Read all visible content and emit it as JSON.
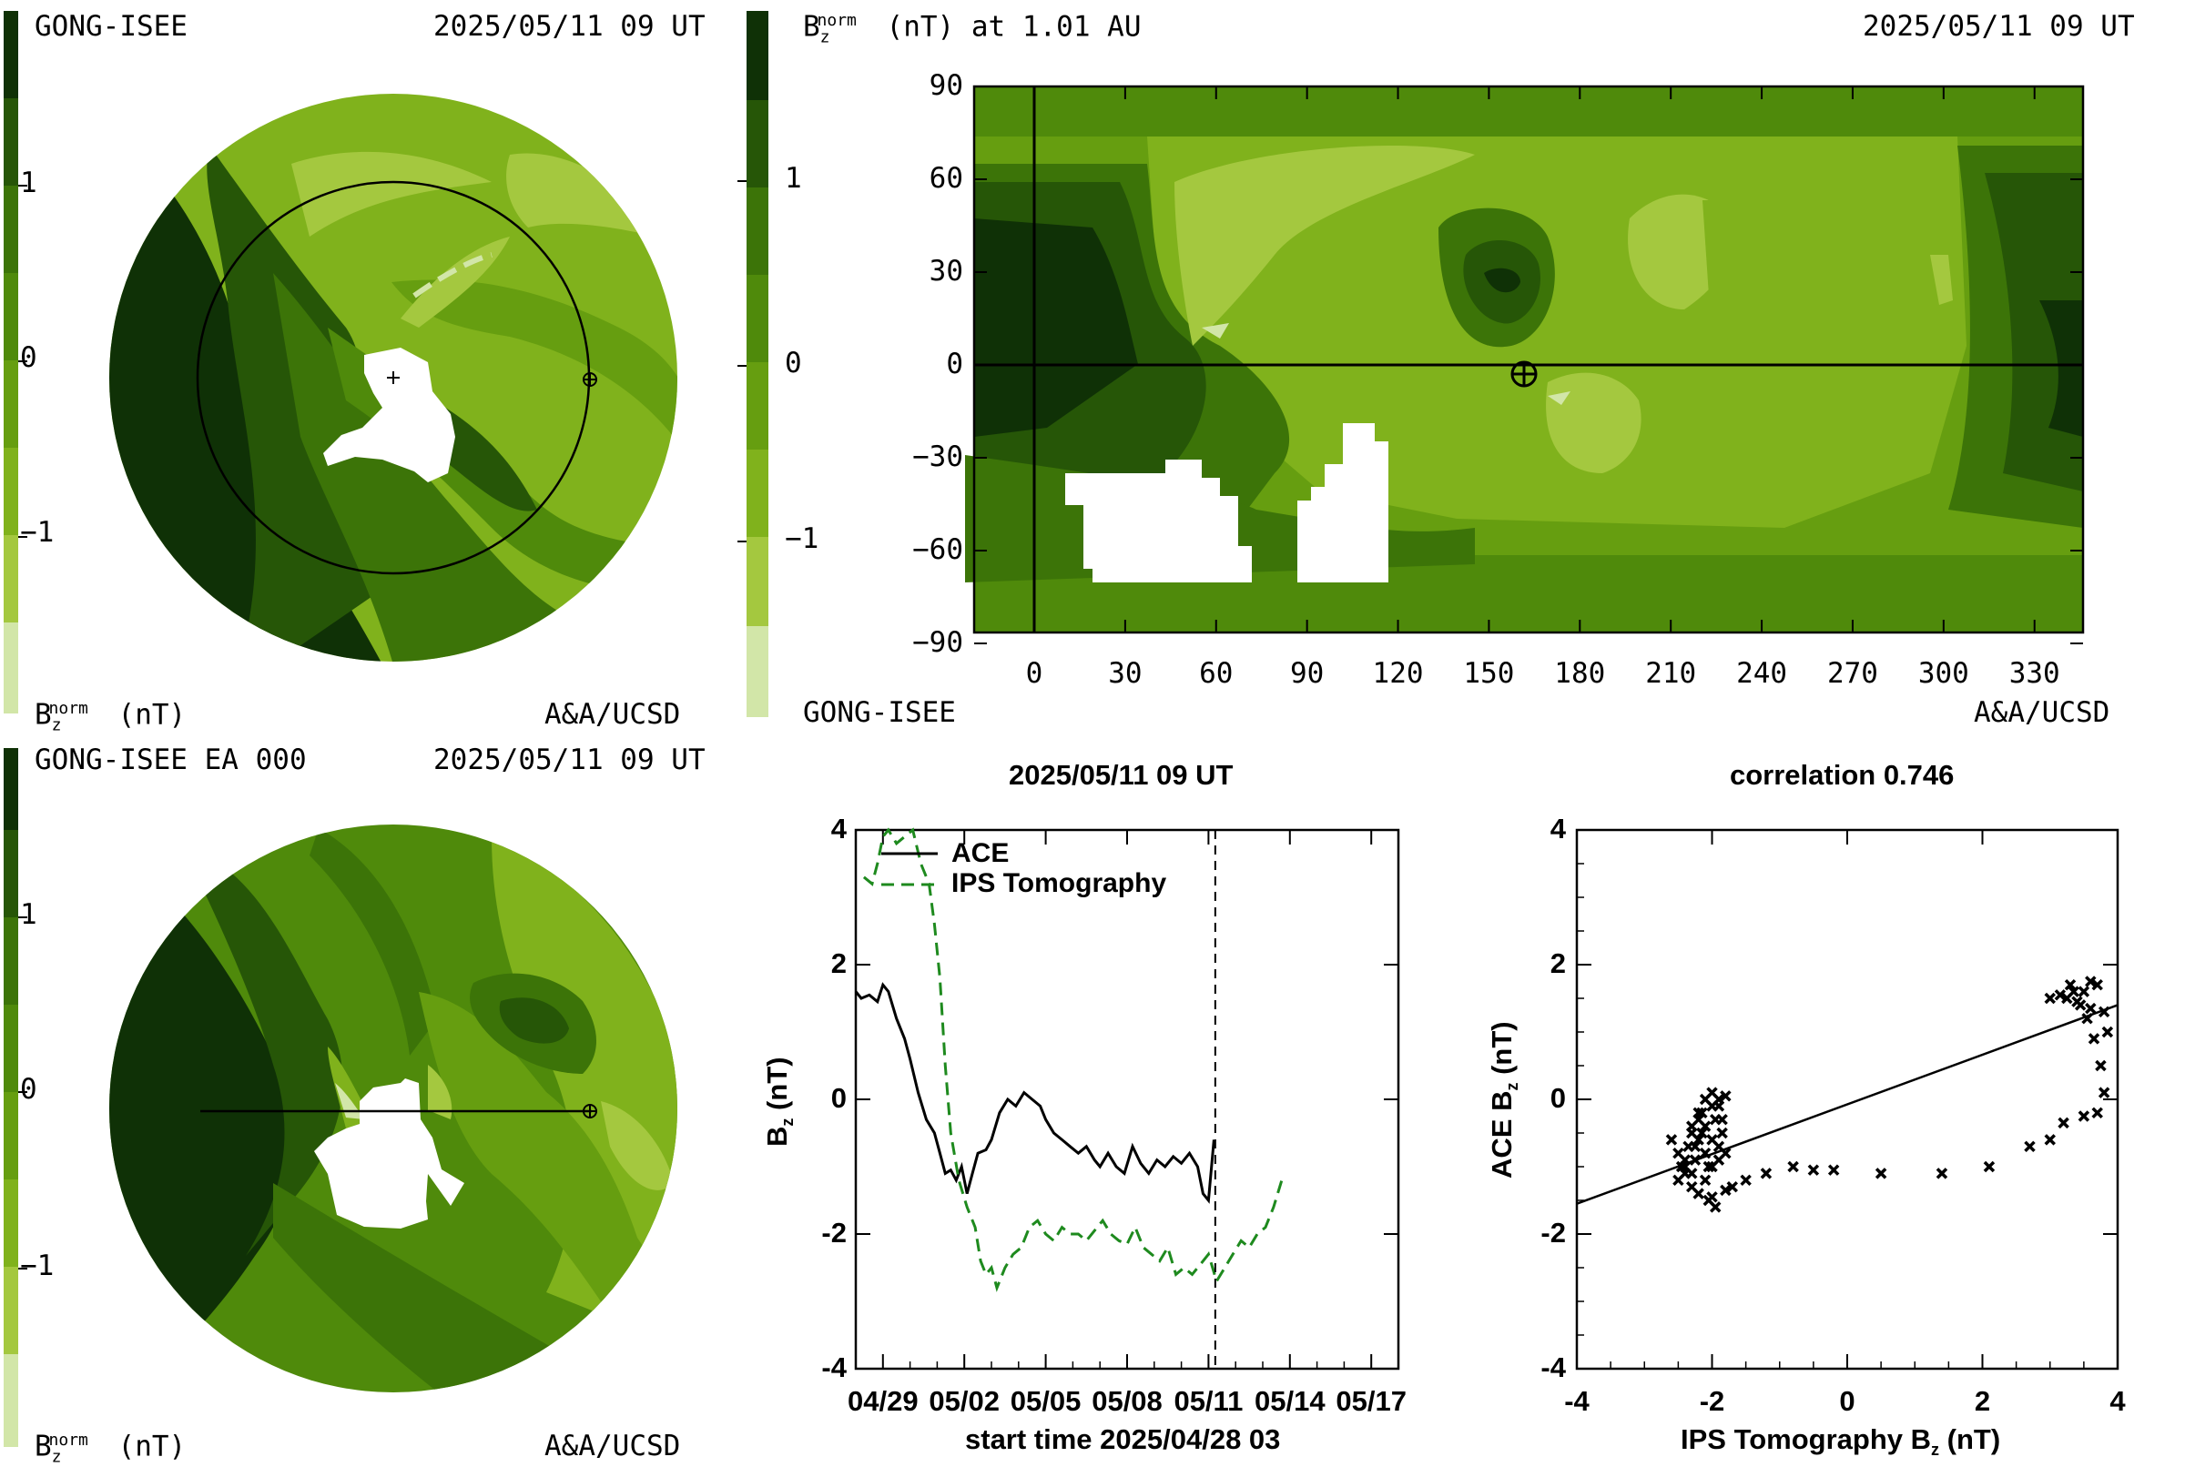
{
  "colors": {
    "c1": "#d2e6a8",
    "c2": "#a4c83f",
    "c3": "#80b21c",
    "c4": "#669e10",
    "c5": "#4f8a0b",
    "c6": "#3c7408",
    "c7": "#265607",
    "c8": "#0f3106",
    "ace": "#000000",
    "ips": "#1e8a1e"
  },
  "panel_tl": {
    "source": "GONG-ISEE",
    "time": "2025/05/11 09 UT",
    "unit_base": "B",
    "unit_sub": "z",
    "unit_sup": "norm",
    "unit_rest": " (nT)",
    "credit": "A&A/UCSD",
    "cbar_ticks": [
      "1",
      "0",
      "−1"
    ]
  },
  "panel_tr": {
    "title_base": "B",
    "title_sub": "z",
    "title_sup": "norm",
    "title_rest": " (nT) at 1.01 AU",
    "time": "2025/05/11 09 UT",
    "source": "GONG-ISEE",
    "credit": "A&A/UCSD",
    "cbar_ticks": [
      "1",
      "0",
      "−1"
    ],
    "y_ticks": [
      "90",
      "60",
      "30",
      "0",
      "−30",
      "−60",
      "−90"
    ],
    "x_ticks": [
      "0",
      "30",
      "60",
      "90",
      "120",
      "150",
      "180",
      "210",
      "240",
      "270",
      "300",
      "330"
    ]
  },
  "panel_bl": {
    "source": "GONG-ISEE EA 000",
    "time": "2025/05/11 09 UT",
    "unit_base": "B",
    "unit_sub": "z",
    "unit_sup": "norm",
    "unit_rest": " (nT)",
    "credit": "A&A/UCSD",
    "cbar_ticks": [
      "1",
      "0",
      "−1"
    ]
  },
  "chart_data": [
    {
      "type": "line",
      "title": "2025/05/11 09 UT",
      "xlabel": "start time 2025/04/28 03",
      "ylabel_base": "B",
      "ylabel_sub": "z",
      "ylabel_rest": " (nT)",
      "x_tick_labels": [
        "04/29",
        "05/02",
        "05/05",
        "05/08",
        "05/11",
        "05/14",
        "05/17"
      ],
      "x_tick_days": [
        1,
        4,
        7,
        10,
        13,
        16,
        19
      ],
      "y_ticks": [
        "4",
        "2",
        "0",
        "-2",
        "-4"
      ],
      "ylim": [
        -4,
        4
      ],
      "xlim": [
        0,
        20
      ],
      "marker_day": 13.25,
      "series": [
        {
          "name": "ACE",
          "style": "solid",
          "x": [
            0,
            0.2,
            0.5,
            0.8,
            1.0,
            1.2,
            1.5,
            1.8,
            2.0,
            2.3,
            2.6,
            2.9,
            3.1,
            3.3,
            3.5,
            3.7,
            3.9,
            4.1,
            4.3,
            4.5,
            4.8,
            5.0,
            5.3,
            5.6,
            5.9,
            6.2,
            6.5,
            6.8,
            7.0,
            7.3,
            7.6,
            7.9,
            8.2,
            8.5,
            8.8,
            9.0,
            9.3,
            9.6,
            9.9,
            10.2,
            10.5,
            10.8,
            11.1,
            11.4,
            11.7,
            12.0,
            12.3,
            12.6,
            12.8,
            13.0,
            13.2
          ],
          "y": [
            1.6,
            1.5,
            1.55,
            1.45,
            1.7,
            1.6,
            1.2,
            0.9,
            0.6,
            0.1,
            -0.3,
            -0.5,
            -0.8,
            -1.1,
            -1.05,
            -1.2,
            -1.0,
            -1.4,
            -1.1,
            -0.8,
            -0.75,
            -0.6,
            -0.2,
            0.0,
            -0.1,
            0.1,
            0.0,
            -0.1,
            -0.3,
            -0.5,
            -0.6,
            -0.7,
            -0.8,
            -0.7,
            -0.9,
            -1.0,
            -0.8,
            -1.0,
            -1.1,
            -0.7,
            -0.95,
            -1.1,
            -0.9,
            -1.0,
            -0.85,
            -0.95,
            -0.8,
            -1.0,
            -1.4,
            -1.5,
            -0.6
          ]
        },
        {
          "name": "IPS Tomography",
          "style": "dashed",
          "x": [
            0.3,
            0.6,
            0.8,
            1.0,
            1.2,
            1.5,
            1.8,
            2.1,
            2.4,
            2.7,
            2.9,
            3.1,
            3.3,
            3.5,
            3.8,
            4.1,
            4.4,
            4.6,
            4.8,
            5.0,
            5.2,
            5.5,
            5.8,
            6.1,
            6.4,
            6.7,
            7.0,
            7.3,
            7.6,
            7.9,
            8.2,
            8.5,
            8.8,
            9.1,
            9.4,
            9.7,
            10.0,
            10.3,
            10.6,
            10.9,
            11.2,
            11.5,
            11.8,
            12.1,
            12.4,
            12.7,
            13.0,
            13.3,
            13.6,
            13.9,
            14.2,
            14.5,
            14.8,
            15.1,
            15.4,
            15.7
          ],
          "y": [
            3.3,
            3.2,
            3.5,
            3.9,
            4.0,
            3.8,
            3.9,
            4.0,
            3.5,
            3.2,
            2.6,
            1.8,
            0.5,
            -0.5,
            -1.2,
            -1.6,
            -1.9,
            -2.4,
            -2.6,
            -2.5,
            -2.8,
            -2.5,
            -2.3,
            -2.2,
            -1.9,
            -1.8,
            -2.0,
            -2.1,
            -1.9,
            -2.0,
            -2.0,
            -2.1,
            -1.95,
            -1.8,
            -2.0,
            -2.1,
            -2.15,
            -1.9,
            -2.2,
            -2.3,
            -2.4,
            -2.2,
            -2.6,
            -2.5,
            -2.6,
            -2.45,
            -2.3,
            -2.7,
            -2.5,
            -2.3,
            -2.1,
            -2.2,
            -2.0,
            -1.9,
            -1.6,
            -1.2
          ]
        }
      ]
    },
    {
      "type": "scatter",
      "title": "correlation 0.746",
      "xlabel_base": "IPS Tomography B",
      "xlabel_sub": "z",
      "xlabel_rest": " (nT)",
      "ylabel_base": "ACE B",
      "ylabel_sub": "z",
      "ylabel_rest": " (nT)",
      "xlim": [
        -4,
        4
      ],
      "ylim": [
        -4,
        4
      ],
      "x_ticks": [
        "-4",
        "-2",
        "0",
        "2",
        "4"
      ],
      "y_ticks": [
        "4",
        "2",
        "0",
        "-2",
        "-4"
      ],
      "fit_line": {
        "x": [
          -4,
          4
        ],
        "y": [
          -1.55,
          1.4
        ]
      },
      "points": {
        "x": [
          -2.6,
          -2.5,
          -2.45,
          -2.4,
          -2.35,
          -2.3,
          -2.3,
          -2.25,
          -2.2,
          -2.2,
          -2.15,
          -2.1,
          -2.1,
          -2.05,
          -2.0,
          -2.0,
          -1.95,
          -1.9,
          -1.9,
          -1.85,
          -1.8,
          -1.8,
          -2.5,
          -2.4,
          -2.3,
          -2.2,
          -2.1,
          -2.0,
          -1.9,
          -2.3,
          -2.2,
          -2.1,
          -2.0,
          -1.9,
          -1.85,
          -2.4,
          -2.25,
          -2.15,
          -2.05,
          -1.95,
          -2.0,
          -1.8,
          -1.7,
          -1.5,
          -1.2,
          -0.8,
          -0.5,
          -0.2,
          0.5,
          1.4,
          2.1,
          2.7,
          3.0,
          3.2,
          3.5,
          3.7,
          3.8,
          3.75,
          3.65,
          3.55,
          3.45,
          3.35,
          3.25,
          3.15,
          3.0,
          3.3,
          3.5,
          3.6,
          3.7,
          3.8,
          3.85,
          3.4,
          3.6
        ],
        "y": [
          -0.6,
          -0.8,
          -1.0,
          -0.9,
          -0.7,
          -0.5,
          -1.1,
          -0.9,
          -0.6,
          -0.3,
          -0.2,
          -0.4,
          -0.8,
          -1.0,
          -0.6,
          -0.1,
          -0.3,
          0.0,
          -0.7,
          -0.5,
          0.05,
          -0.8,
          -1.2,
          -1.1,
          -1.3,
          -1.4,
          -1.2,
          -1.0,
          -0.9,
          -0.4,
          -0.2,
          0.0,
          0.1,
          -0.1,
          -0.3,
          -1.0,
          -0.7,
          -0.5,
          -1.5,
          -1.6,
          -1.45,
          -1.35,
          -1.3,
          -1.2,
          -1.1,
          -1.0,
          -1.05,
          -1.05,
          -1.1,
          -1.1,
          -1.0,
          -0.7,
          -0.6,
          -0.35,
          -0.25,
          -0.2,
          0.1,
          0.5,
          0.9,
          1.2,
          1.4,
          1.6,
          1.5,
          1.55,
          1.5,
          1.7,
          1.6,
          1.75,
          1.7,
          1.3,
          1.0,
          1.45,
          1.35
        ]
      }
    }
  ]
}
